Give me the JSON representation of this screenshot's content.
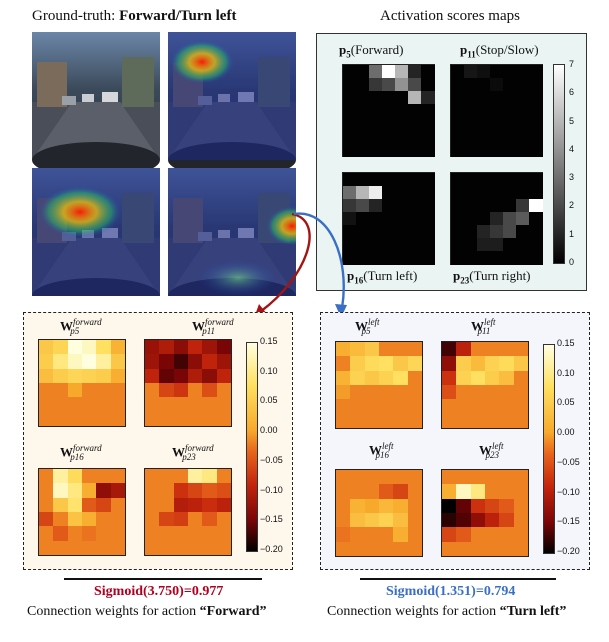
{
  "header": {
    "ground_truth_prefix": "Ground-truth: ",
    "ground_truth_value": "Forward/Turn left",
    "activation_title": "Activation scores maps"
  },
  "activation_maps": [
    {
      "prefix": "p",
      "index": "5",
      "name": "(Forward)"
    },
    {
      "prefix": "p",
      "index": "11",
      "name": "(Stop/Slow)"
    },
    {
      "prefix": "p",
      "index": "16",
      "name": "(Turn left)"
    },
    {
      "prefix": "p",
      "index": "23",
      "name": "(Turn right)"
    }
  ],
  "activation_colorbar_ticks": [
    "7",
    "6",
    "5",
    "4",
    "3",
    "2",
    "1",
    "0"
  ],
  "weights_forward": {
    "labels": [
      {
        "base": "W",
        "sup": "forward",
        "sub": "p5"
      },
      {
        "base": "W",
        "sup": "forward",
        "sub": "p11"
      },
      {
        "base": "W",
        "sup": "forward",
        "sub": "p16"
      },
      {
        "base": "W",
        "sup": "forward",
        "sub": "p23"
      }
    ],
    "sigmoid": "Sigmoid(3.750)=0.977",
    "caption_prefix": "Connection weights for action ",
    "caption_action": "“Forward”"
  },
  "weights_left": {
    "labels": [
      {
        "base": "W",
        "sup": "left",
        "sub": "p5"
      },
      {
        "base": "W",
        "sup": "left",
        "sub": "p11"
      },
      {
        "base": "W",
        "sup": "left",
        "sub": "p16"
      },
      {
        "base": "W",
        "sup": "left",
        "sub": "p23"
      }
    ],
    "sigmoid": "Sigmoid(1.351)=0.794",
    "caption_prefix": "Connection weights for action ",
    "caption_action": "“Turn left”"
  },
  "weights_colorbar_ticks": [
    "0.15",
    "0.10",
    "0.05",
    "0.00",
    "−0.05",
    "−0.10",
    "−0.15",
    "−0.20"
  ],
  "colors": {
    "forward_accent": "#b00020",
    "left_accent": "#3a6fc4",
    "forward_bg": "#fdf7ec",
    "left_bg": "#f4f6fc",
    "activation_bg": "#eaf5f3"
  }
}
